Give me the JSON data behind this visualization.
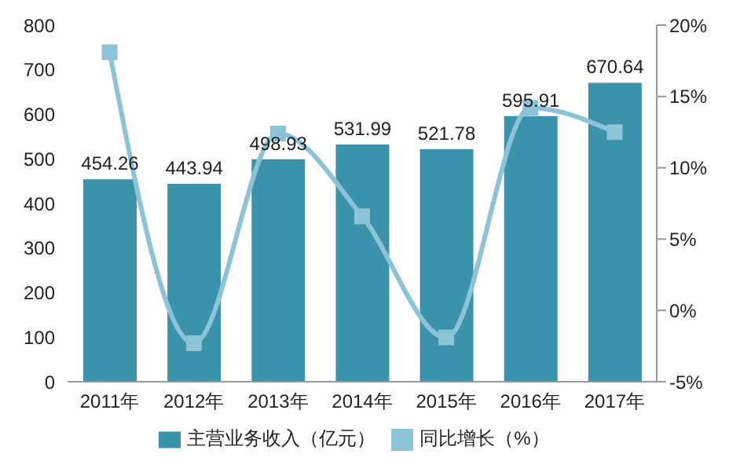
{
  "chart_data": {
    "type": "bar",
    "categories": [
      "2011年",
      "2012年",
      "2013年",
      "2014年",
      "2015年",
      "2016年",
      "2017年"
    ],
    "series": [
      {
        "name": "主营业务收入（亿元）",
        "color": "#3a93ab",
        "values": [
          454.26,
          443.94,
          498.93,
          531.99,
          521.78,
          595.91,
          670.64
        ],
        "value_labels": [
          "454.26",
          "443.94",
          "498.93",
          "531.99",
          "521.78",
          "595.91",
          "670.64"
        ]
      },
      {
        "name": "同比增长（%）",
        "type": "line",
        "axis": "y2",
        "color": "#8cc3d6",
        "marker": "square",
        "values": [
          18.1,
          -2.3,
          12.4,
          6.6,
          -1.9,
          14.2,
          12.5
        ]
      }
    ],
    "ylim": [
      0,
      800
    ],
    "yticks": [
      0,
      100,
      200,
      300,
      400,
      500,
      600,
      700,
      800
    ],
    "y2lim": [
      -5,
      20
    ],
    "y2ticks": [
      {
        "value": -5,
        "label": "-5%"
      },
      {
        "value": 0,
        "label": "0%"
      },
      {
        "value": 5,
        "label": "5%"
      },
      {
        "value": 10,
        "label": "10%"
      },
      {
        "value": 15,
        "label": "15%"
      },
      {
        "value": 20,
        "label": "20%"
      }
    ],
    "grid": false,
    "legend": "bottom"
  }
}
